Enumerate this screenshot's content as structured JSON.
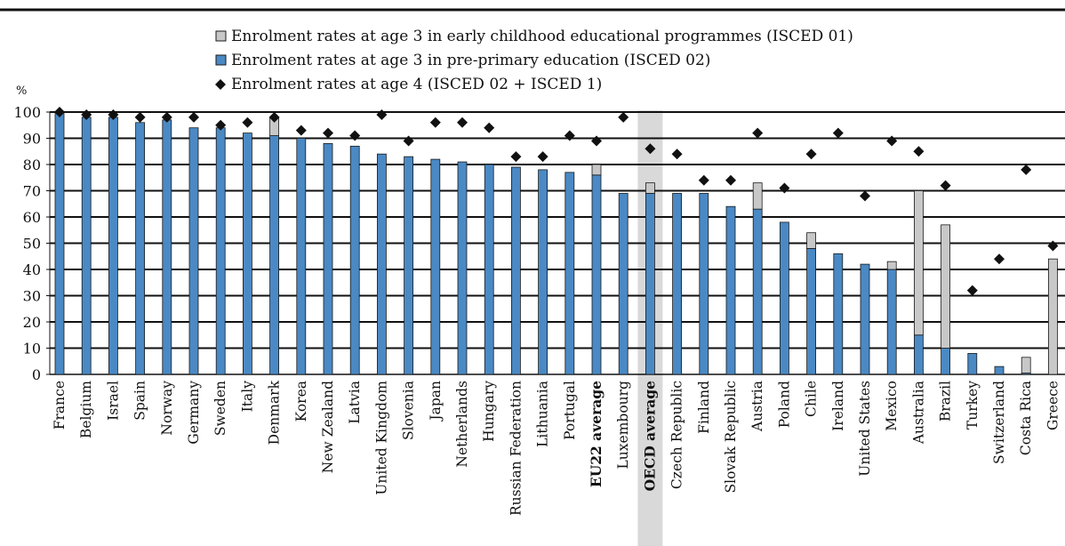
{
  "chart_data": {
    "type": "bar",
    "ylabel": "%",
    "ylim": [
      0,
      100
    ],
    "yticks": [
      0,
      10,
      20,
      30,
      40,
      50,
      60,
      70,
      80,
      90,
      100
    ],
    "grid": true,
    "legend_position": "top",
    "categories": [
      "France",
      "Belgium",
      "Israel",
      "Spain",
      "Norway",
      "Germany",
      "Sweden",
      "Italy",
      "Denmark",
      "Korea",
      "New Zealand",
      "Latvia",
      "United Kingdom",
      "Slovenia",
      "Japan",
      "Netherlands",
      "Hungary",
      "Russian Federation",
      "Lithuania",
      "Portugal",
      "EU22 average",
      "Luxembourg",
      "OECD average",
      "Czech Republic",
      "Finland",
      "Slovak Republic",
      "Austria",
      "Poland",
      "Chile",
      "Ireland",
      "United States",
      "Mexico",
      "Australia",
      "Brazil",
      "Turkey",
      "Switzerland",
      "Costa Rica",
      "Greece"
    ],
    "emphasized_categories": [
      "EU22 average",
      "OECD average"
    ],
    "highlighted_category": "OECD average",
    "series": [
      {
        "name": "Enrolment rates at age 3 in pre-primary education (ISCED 02)",
        "kind": "bar",
        "color": "#4a89c4",
        "values": [
          100,
          98,
          98,
          96,
          97,
          94,
          94,
          92,
          91,
          90,
          88,
          87,
          84,
          83,
          82,
          81,
          80,
          79,
          78,
          77,
          76,
          69,
          69,
          69,
          69,
          64,
          63,
          58,
          48,
          46,
          42,
          40,
          15,
          10,
          8,
          3,
          0.5,
          0
        ]
      },
      {
        "name": "Enrolment rates at age 3 in early childhood educational programmes (ISCED 01)",
        "kind": "bar-stacked",
        "color": "#c8c8c8",
        "values": [
          0,
          0,
          0,
          0,
          0,
          0,
          0,
          0,
          7,
          0,
          0,
          0,
          0,
          0,
          0,
          0,
          0,
          0,
          0,
          0,
          4,
          0,
          4,
          0,
          0,
          0,
          10,
          0,
          6,
          0,
          0,
          3,
          55,
          47,
          0,
          0,
          6,
          44
        ]
      },
      {
        "name": "Enrolment rates at age 4 (ISCED 02 + ISCED 1)",
        "kind": "marker",
        "color": "#111111",
        "values": [
          100,
          99,
          99,
          98,
          98,
          98,
          95,
          96,
          98,
          93,
          92,
          91,
          99,
          89,
          96,
          96,
          94,
          83,
          83,
          91,
          89,
          98,
          86,
          84,
          74,
          74,
          92,
          71,
          84,
          92,
          68,
          89,
          85,
          72,
          32,
          44,
          78,
          49
        ]
      }
    ]
  }
}
